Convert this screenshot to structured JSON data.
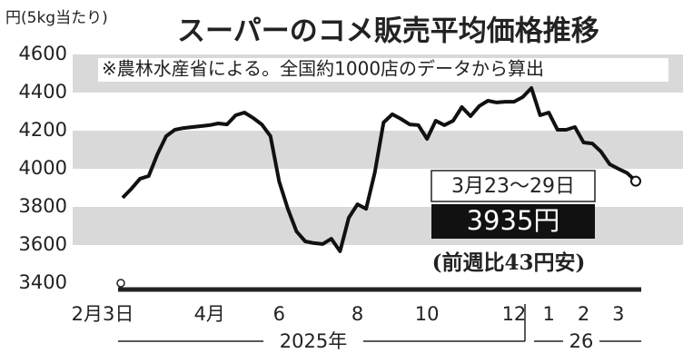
{
  "chart_data": {
    "type": "line",
    "title": "スーパーのコメ販売平均価格推移",
    "y_unit_label": "円(5kg当たり)",
    "note": "※農林水産省による。全国約1000店のデータから算出",
    "categories": [
      "2月3日",
      null,
      null,
      null,
      null,
      null,
      null,
      null,
      null,
      null,
      "4月",
      null,
      null,
      null,
      null,
      null,
      null,
      null,
      "6",
      null,
      null,
      null,
      null,
      null,
      null,
      null,
      null,
      "8",
      null,
      null,
      null,
      null,
      null,
      null,
      null,
      "10",
      null,
      null,
      null,
      null,
      null,
      null,
      null,
      null,
      null,
      "12",
      null,
      null,
      null,
      "1",
      null,
      null,
      null,
      "2",
      null,
      null,
      null,
      "3",
      null,
      null
    ],
    "year_labels": [
      "2025年",
      "26"
    ],
    "values": [
      3848,
      3895,
      3948,
      3962,
      4076,
      4171,
      4205,
      4214,
      4219,
      4224,
      4229,
      4238,
      4233,
      4281,
      4295,
      4267,
      4233,
      4171,
      3933,
      3790,
      3671,
      3619,
      3610,
      3605,
      3633,
      3567,
      3743,
      3814,
      3790,
      3981,
      4243,
      4286,
      4262,
      4233,
      4229,
      4157,
      4252,
      4229,
      4252,
      4324,
      4276,
      4329,
      4357,
      4348,
      4352,
      4352,
      4376,
      4424,
      4281,
      4295,
      4205,
      4205,
      4219,
      4138,
      4133,
      4090,
      4024,
      4000,
      3978,
      3935
    ],
    "value_labels": [
      null,
      null,
      null,
      null,
      null,
      null,
      null,
      null,
      null,
      null,
      null,
      null,
      null,
      null,
      null,
      null,
      null,
      null,
      null,
      null,
      null,
      null,
      null,
      null,
      null,
      null,
      null,
      null,
      null,
      null,
      null,
      null,
      null,
      null,
      null,
      null,
      null,
      null,
      null,
      null,
      null,
      null,
      null,
      null,
      null,
      null,
      null,
      null,
      null,
      null,
      null,
      null,
      null,
      null,
      null,
      null,
      null,
      null,
      null,
      "3935円"
    ],
    "last_period_label": "3月23〜29日",
    "change_label": "(前週比43円安)",
    "color": "#111111",
    "ylim": [
      3400,
      4600
    ],
    "yticks": [
      3400,
      3600,
      3800,
      4000,
      4200,
      4400,
      4600
    ],
    "grid": "bands",
    "band_color": "#d9d9d9"
  }
}
